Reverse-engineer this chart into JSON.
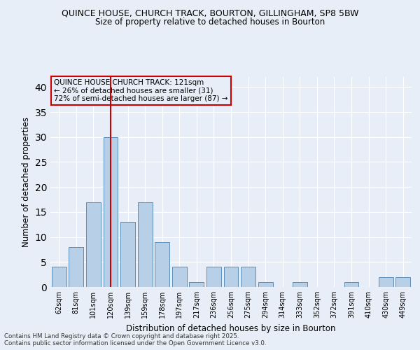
{
  "title_line1": "QUINCE HOUSE, CHURCH TRACK, BOURTON, GILLINGHAM, SP8 5BW",
  "title_line2": "Size of property relative to detached houses in Bourton",
  "xlabel": "Distribution of detached houses by size in Bourton",
  "ylabel": "Number of detached properties",
  "categories": [
    "62sqm",
    "81sqm",
    "101sqm",
    "120sqm",
    "139sqm",
    "159sqm",
    "178sqm",
    "197sqm",
    "217sqm",
    "236sqm",
    "256sqm",
    "275sqm",
    "294sqm",
    "314sqm",
    "333sqm",
    "352sqm",
    "372sqm",
    "391sqm",
    "410sqm",
    "430sqm",
    "449sqm"
  ],
  "values": [
    4,
    8,
    17,
    30,
    13,
    17,
    9,
    4,
    1,
    4,
    4,
    4,
    1,
    0,
    1,
    0,
    0,
    1,
    0,
    2,
    2
  ],
  "bar_color": "#b8cfe8",
  "bar_edge_color": "#5b8db8",
  "red_line_x": 3.0,
  "annotation_label": "QUINCE HOUSE CHURCH TRACK: 121sqm",
  "annotation_line2": "← 26% of detached houses are smaller (31)",
  "annotation_line3": "72% of semi-detached houses are larger (87) →",
  "subject_color": "#cc0000",
  "box_edge_color": "#cc0000",
  "background_color": "#e8eef7",
  "grid_color": "#ffffff",
  "ylim": [
    0,
    42
  ],
  "yticks": [
    0,
    5,
    10,
    15,
    20,
    25,
    30,
    35,
    40
  ],
  "footnote_line1": "Contains HM Land Registry data © Crown copyright and database right 2025.",
  "footnote_line2": "Contains public sector information licensed under the Open Government Licence v3.0."
}
